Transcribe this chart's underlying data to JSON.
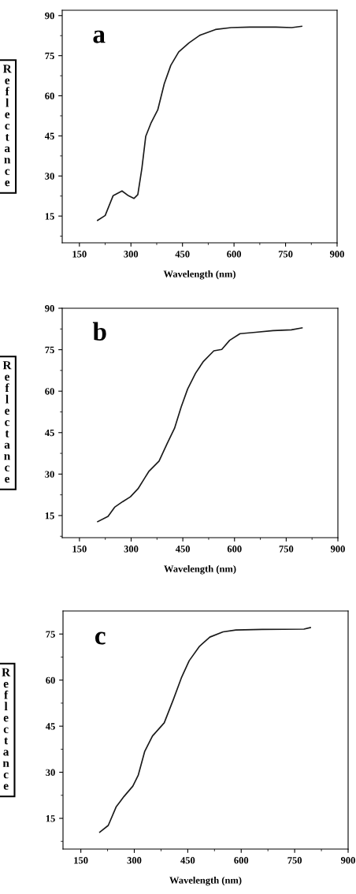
{
  "chart_data": [
    {
      "type": "line",
      "annotations": [
        "a"
      ],
      "xlabel": "Wavelength (nm)",
      "ylabel": "Reflectance",
      "xlim": [
        100,
        900
      ],
      "ylim": [
        5,
        92
      ],
      "xticks": [
        150,
        300,
        450,
        600,
        750,
        900
      ],
      "yticks": [
        15,
        30,
        45,
        60,
        75,
        90
      ],
      "grid": false,
      "legend": false,
      "series": [
        {
          "color": "#1a1a1a",
          "x": [
            203,
            225,
            248,
            274,
            293,
            309,
            320,
            332,
            343,
            358,
            378,
            397,
            416,
            439,
            469,
            500,
            546,
            592,
            645,
            722,
            768,
            797
          ],
          "values": [
            13.4,
            15.2,
            22.6,
            24.4,
            22.6,
            21.6,
            23,
            33,
            44.8,
            49.7,
            54.7,
            64.5,
            71.4,
            76.4,
            79.8,
            82.6,
            84.8,
            85.5,
            85.7,
            85.7,
            85.5,
            86
          ]
        }
      ]
    },
    {
      "type": "line",
      "annotations": [
        "b"
      ],
      "xlabel": "Wavelength (nm)",
      "ylabel": "Reflectance",
      "xlim": [
        100,
        900
      ],
      "ylim": [
        7,
        90
      ],
      "xticks": [
        150,
        300,
        450,
        600,
        750,
        900
      ],
      "yticks": [
        15,
        30,
        45,
        60,
        75,
        90
      ],
      "grid": false,
      "legend": false,
      "series": [
        {
          "color": "#1a1a1a",
          "x": [
            203,
            233,
            252,
            275,
            298,
            320,
            339,
            351,
            381,
            404,
            426,
            445,
            464,
            487,
            510,
            540,
            563,
            586,
            616,
            661,
            712,
            765,
            796
          ],
          "values": [
            12.8,
            14.7,
            18,
            20,
            21.8,
            24.7,
            28.5,
            30.9,
            34.7,
            40.9,
            46.6,
            54.2,
            60.8,
            66.5,
            70.8,
            74.6,
            75.1,
            78.4,
            80.8,
            81.3,
            81.9,
            82.2,
            82.9
          ]
        }
      ]
    },
    {
      "type": "line",
      "annotations": [
        "c"
      ],
      "xlabel": "Wavelength (nm)",
      "ylabel": "Reflectance",
      "xlim": [
        100,
        900
      ],
      "ylim": [
        5,
        82.5
      ],
      "xticks": [
        150,
        300,
        450,
        600,
        750,
        900
      ],
      "yticks": [
        15,
        30,
        45,
        60,
        75
      ],
      "grid": false,
      "legend": false,
      "series": [
        {
          "color": "#1a1a1a",
          "x": [
            203,
            227,
            249,
            271,
            296,
            311,
            329,
            351,
            384,
            410,
            432,
            454,
            483,
            512,
            549,
            585,
            659,
            776,
            794
          ],
          "values": [
            10.5,
            12.7,
            18.7,
            22.1,
            25.5,
            29,
            36.7,
            41.8,
            46.1,
            53.8,
            60.7,
            66.3,
            71,
            74,
            75.7,
            76.3,
            76.5,
            76.6,
            77.1
          ]
        }
      ]
    }
  ]
}
